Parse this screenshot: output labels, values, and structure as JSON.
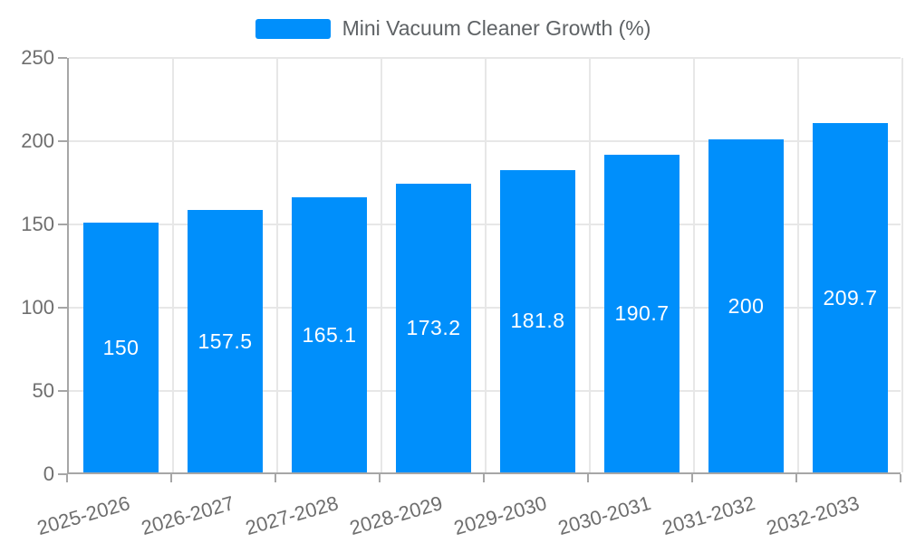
{
  "legend": {
    "label": "Mini Vacuum Cleaner Growth (%)"
  },
  "chart_data": {
    "type": "bar",
    "title": "Mini Vacuum Cleaner Growth (%)",
    "categories": [
      "2025-2026",
      "2026-2027",
      "2027-2028",
      "2028-2029",
      "2029-2030",
      "2030-2031",
      "2031-2032",
      "2032-2033"
    ],
    "values": [
      150,
      157.5,
      165.1,
      173.2,
      181.8,
      190.7,
      200,
      209.7
    ],
    "value_labels": [
      "150",
      "157.5",
      "165.1",
      "173.2",
      "181.8",
      "190.7",
      "200",
      "209.7"
    ],
    "xlabel": "",
    "ylabel": "",
    "ylim": [
      0,
      250
    ],
    "yticks": [
      0,
      50,
      100,
      150,
      200,
      250
    ],
    "grid": true,
    "legend_position": "top",
    "x_label_rotation_deg": -16,
    "colors": {
      "bar": "#008FFB",
      "bar_label": "#FFFFFF",
      "axis_label": "#6E6E6E",
      "legend_label": "#5E6265",
      "grid": "#E7E7E7",
      "axis_line": "#A6A6A6"
    }
  }
}
